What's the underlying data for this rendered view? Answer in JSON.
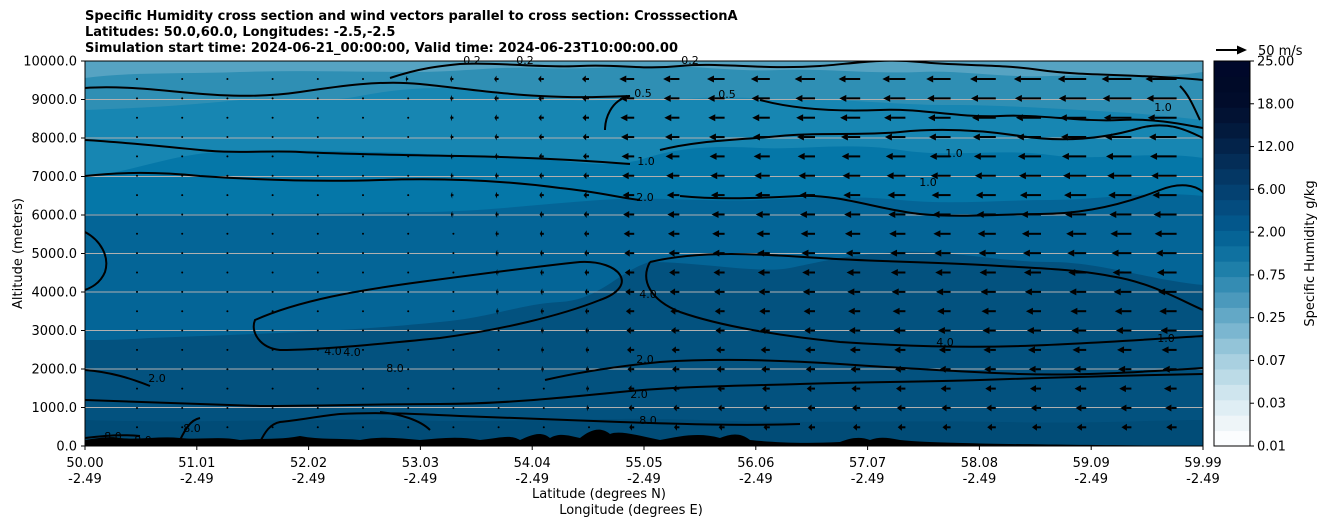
{
  "title_lines": [
    "Specific Humidity cross section and wind vectors parallel to cross section: CrosssectionA",
    "Latitudes: 50.0,60.0, Longitudes: -2.5,-2.5",
    "Simulation start time: 2024-06-21_00:00:00, Valid time: 2024-06-23T10:00:00.00"
  ],
  "chart_data": {
    "type": "heatmap",
    "ylabel": "Altitude (meters)",
    "xlabel_lines": [
      "Latitude (degrees N)",
      "Longitude (degrees E)"
    ],
    "x_ticks": [
      {
        "lat": "50.00",
        "lon": "-2.49"
      },
      {
        "lat": "51.01",
        "lon": "-2.49"
      },
      {
        "lat": "52.02",
        "lon": "-2.49"
      },
      {
        "lat": "53.03",
        "lon": "-2.49"
      },
      {
        "lat": "54.04",
        "lon": "-2.49"
      },
      {
        "lat": "55.05",
        "lon": "-2.49"
      },
      {
        "lat": "56.06",
        "lon": "-2.49"
      },
      {
        "lat": "57.07",
        "lon": "-2.49"
      },
      {
        "lat": "58.08",
        "lon": "-2.49"
      },
      {
        "lat": "59.09",
        "lon": "-2.49"
      },
      {
        "lat": "59.99",
        "lon": "-2.49"
      }
    ],
    "y_ticks": [
      "0.0",
      "1000.0",
      "2000.0",
      "3000.0",
      "4000.0",
      "5000.0",
      "6000.0",
      "7000.0",
      "8000.0",
      "9000.0",
      "10000.0"
    ],
    "ylim": [
      0,
      10000
    ],
    "xlim": [
      50.0,
      59.99
    ],
    "grid": "horizontal",
    "colorbar": {
      "label": "Specific Humidity g/kg",
      "ticks": [
        "0.01",
        "0.03",
        "0.07",
        "0.25",
        "0.75",
        "2.00",
        "6.00",
        "12.00",
        "18.00",
        "25.00"
      ],
      "colormap": "PuBu"
    },
    "quiver_key": "50 m/s",
    "contour_labels": [
      "0.2",
      "0.2",
      "0.2",
      "0.5",
      "0.5",
      "1.0",
      "1.0",
      "1.0",
      "1.0",
      "1.0",
      "2.0",
      "2.0",
      "2.0",
      "2.0",
      "4.0",
      "4.0",
      "4.0",
      "4.0",
      "8.0",
      "8.0",
      "8.0",
      "8.0",
      "8.0"
    ],
    "colors": {
      "background_fill": "#03527f",
      "upper_fill": "#4e9fbd",
      "terrain": "#000000"
    }
  }
}
